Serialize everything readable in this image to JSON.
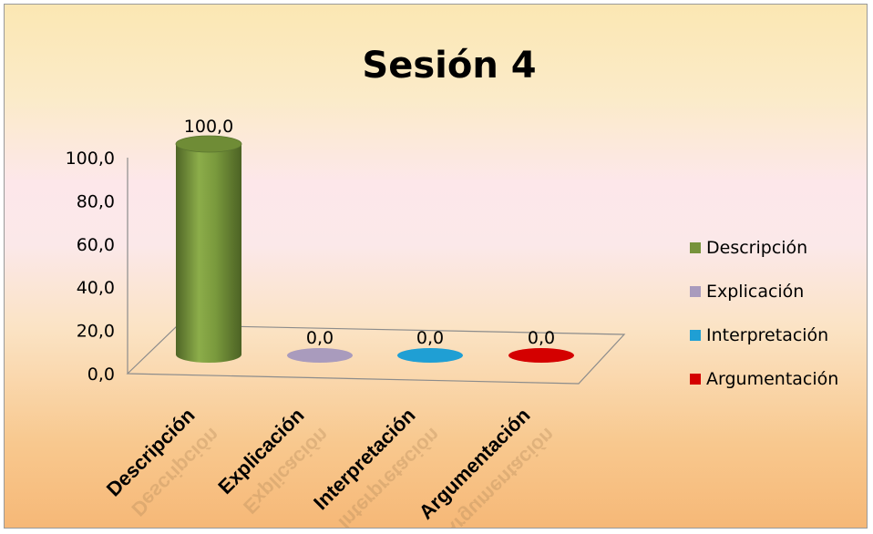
{
  "chart_data": {
    "type": "bar",
    "title": "Sesión 4",
    "categories": [
      "Descripción",
      "Explicación",
      "Interpretación",
      "Argumentación"
    ],
    "series": [
      {
        "name": "Descripción",
        "values": [
          100.0,
          null,
          null,
          null
        ]
      },
      {
        "name": "Explicación",
        "values": [
          null,
          0.0,
          null,
          null
        ]
      },
      {
        "name": "Interpretación",
        "values": [
          null,
          null,
          0.0,
          null
        ]
      },
      {
        "name": "Argumentación",
        "values": [
          null,
          null,
          null,
          0.0
        ]
      }
    ],
    "values": [
      100.0,
      0.0,
      0.0,
      0.0
    ],
    "data_labels": [
      "100,0",
      "0,0",
      "0,0",
      "0,0"
    ],
    "y_ticks": [
      "0,0",
      "20,0",
      "40,0",
      "60,0",
      "80,0",
      "100,0"
    ],
    "ylim": [
      0,
      100
    ],
    "colors": [
      "#77933c",
      "#a99bbd",
      "#1f9fd4",
      "#d40000"
    ],
    "legend_position": "right",
    "style": "3d-cylinder",
    "grid": false
  }
}
